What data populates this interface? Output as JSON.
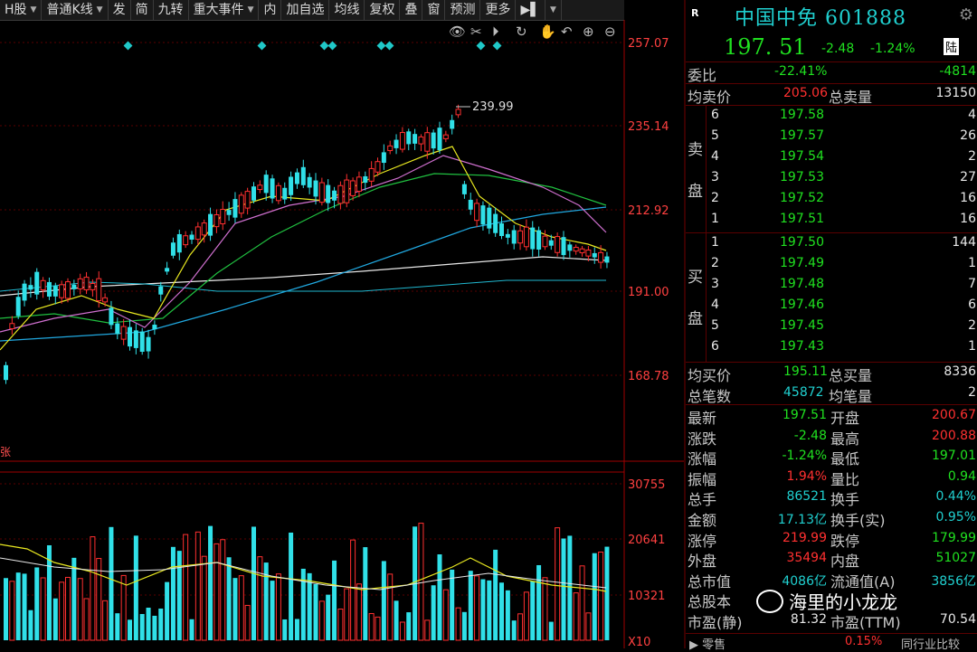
{
  "toolbar": {
    "items": [
      "H股",
      "普通K线",
      "发",
      "简",
      "九转",
      "重大事件",
      "内",
      "加自选",
      "均线",
      "复权",
      "叠",
      "窗",
      "预测",
      "更多"
    ]
  },
  "chart": {
    "price_axis": [
      "257.07",
      "235.14",
      "212.92",
      "191.00",
      "168.78"
    ],
    "vol_axis": [
      "30755",
      "20641",
      "10321",
      "X10"
    ],
    "peak_label": "239.99",
    "zhang_label": "张"
  },
  "stock": {
    "badge": "R",
    "title": "中国中免 601888",
    "price": "197. 51",
    "change": "-2.48",
    "change_pct": "-1.24%",
    "exchange": "陆"
  },
  "ratio": {
    "label": "委比",
    "pct": "-22.41%",
    "diff": "-4814"
  },
  "avg_sell": {
    "label": "均卖价",
    "price": "205.06",
    "total_label": "总卖量",
    "total": "13150"
  },
  "sell_side": {
    "label1": "卖",
    "label2": "盘"
  },
  "buy_side": {
    "label1": "买",
    "label2": "盘"
  },
  "asks": [
    {
      "n": "6",
      "p": "197.58",
      "v": "4"
    },
    {
      "n": "5",
      "p": "197.57",
      "v": "26"
    },
    {
      "n": "4",
      "p": "197.54",
      "v": "2"
    },
    {
      "n": "3",
      "p": "197.53",
      "v": "27"
    },
    {
      "n": "2",
      "p": "197.52",
      "v": "16"
    },
    {
      "n": "1",
      "p": "197.51",
      "v": "16"
    }
  ],
  "bids": [
    {
      "n": "1",
      "p": "197.50",
      "v": "144"
    },
    {
      "n": "2",
      "p": "197.49",
      "v": "1"
    },
    {
      "n": "3",
      "p": "197.48",
      "v": "7"
    },
    {
      "n": "4",
      "p": "197.46",
      "v": "6"
    },
    {
      "n": "5",
      "p": "197.45",
      "v": "2"
    },
    {
      "n": "6",
      "p": "197.43",
      "v": "1"
    }
  ],
  "avg_buy": {
    "label": "均买价",
    "price": "195.11",
    "total_label": "总买量",
    "total": "8336"
  },
  "trades": {
    "label": "总笔数",
    "count": "45872",
    "avg_label": "均笔量",
    "avg": "2"
  },
  "stats": [
    {
      "l1": "最新",
      "v1": "197.51",
      "c1": "green",
      "l2": "开盘",
      "v2": "200.67",
      "c2": "red"
    },
    {
      "l1": "涨跌",
      "v1": "-2.48",
      "c1": "green",
      "l2": "最高",
      "v2": "200.88",
      "c2": "red"
    },
    {
      "l1": "涨幅",
      "v1": "-1.24%",
      "c1": "green",
      "l2": "最低",
      "v2": "197.01",
      "c2": "green"
    },
    {
      "l1": "振幅",
      "v1": "1.94%",
      "c1": "red",
      "l2": "量比",
      "v2": "0.94",
      "c2": "green"
    },
    {
      "l1": "总手",
      "v1": "86521",
      "c1": "cyan",
      "l2": "换手",
      "v2": "0.44%",
      "c2": "cyan"
    },
    {
      "l1": "金额",
      "v1": "17.13亿",
      "c1": "cyan",
      "l2": "换手(实)",
      "v2": "0.95%",
      "c2": "cyan"
    },
    {
      "l1": "涨停",
      "v1": "219.99",
      "c1": "red",
      "l2": "跌停",
      "v2": "179.99",
      "c2": "green"
    },
    {
      "l1": "外盘",
      "v1": "35494",
      "c1": "red",
      "l2": "内盘",
      "v2": "51027",
      "c2": "green"
    },
    {
      "l1": "总市值",
      "v1": "4086亿",
      "c1": "cyan",
      "l2": "流通值(A)",
      "v2": "3856亿",
      "c2": "cyan"
    },
    {
      "l1": "总股本",
      "v1": "",
      "c1": "cyan",
      "l2": "",
      "v2": "",
      "c2": "cyan"
    },
    {
      "l1": "市盈(静)",
      "v1": "81.32",
      "c1": "white",
      "l2": "市盈(TTM)",
      "v2": "70.54",
      "c2": "white"
    }
  ],
  "bottom": {
    "pct": "0.15%",
    "tail": "同行业比较"
  },
  "watermark": "海里的小龙龙"
}
